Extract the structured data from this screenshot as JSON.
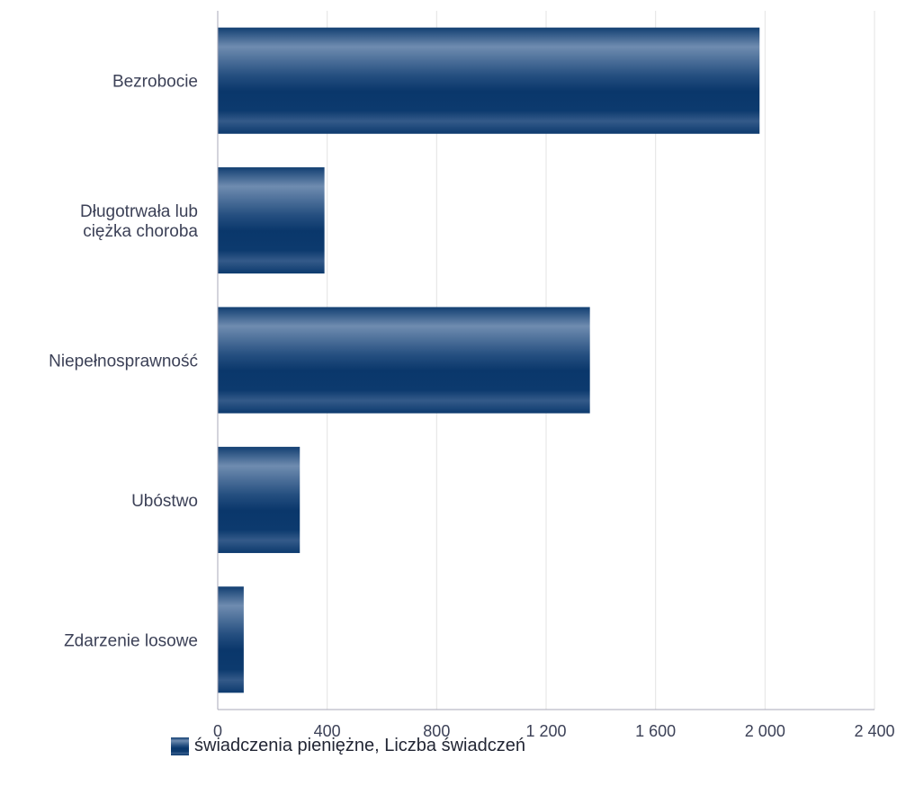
{
  "chart_data": {
    "type": "bar",
    "orientation": "horizontal",
    "categories": [
      [
        "Bezrobocie"
      ],
      [
        "Długotrwała lub",
        "ciężka choroba"
      ],
      [
        "Niepełnosprawność"
      ],
      [
        "Ubóstwo"
      ],
      [
        "Zdarzenie losowe"
      ]
    ],
    "series": [
      {
        "name": "świadczenia pieniężne, Liczba świadczeń",
        "values": [
          1980,
          390,
          1360,
          300,
          95
        ]
      }
    ],
    "xlim": [
      0,
      2400
    ],
    "x_ticks": [
      0,
      400,
      800,
      1200,
      1600,
      2000,
      2400
    ],
    "x_tick_labels": [
      "0",
      "400",
      "800",
      "1 200",
      "1 600",
      "2 000",
      "2 400"
    ],
    "grid": true,
    "legend_position": "bottom-left",
    "colors": {
      "bar_dark": "#0d3d73",
      "bar_light": "#6f8cb0",
      "grid": "#e3e3e3",
      "axis": "#a9a9b8",
      "text": "#3c4157"
    }
  },
  "legend": {
    "label": "świadczenia pieniężne, Liczba świadczeń"
  }
}
